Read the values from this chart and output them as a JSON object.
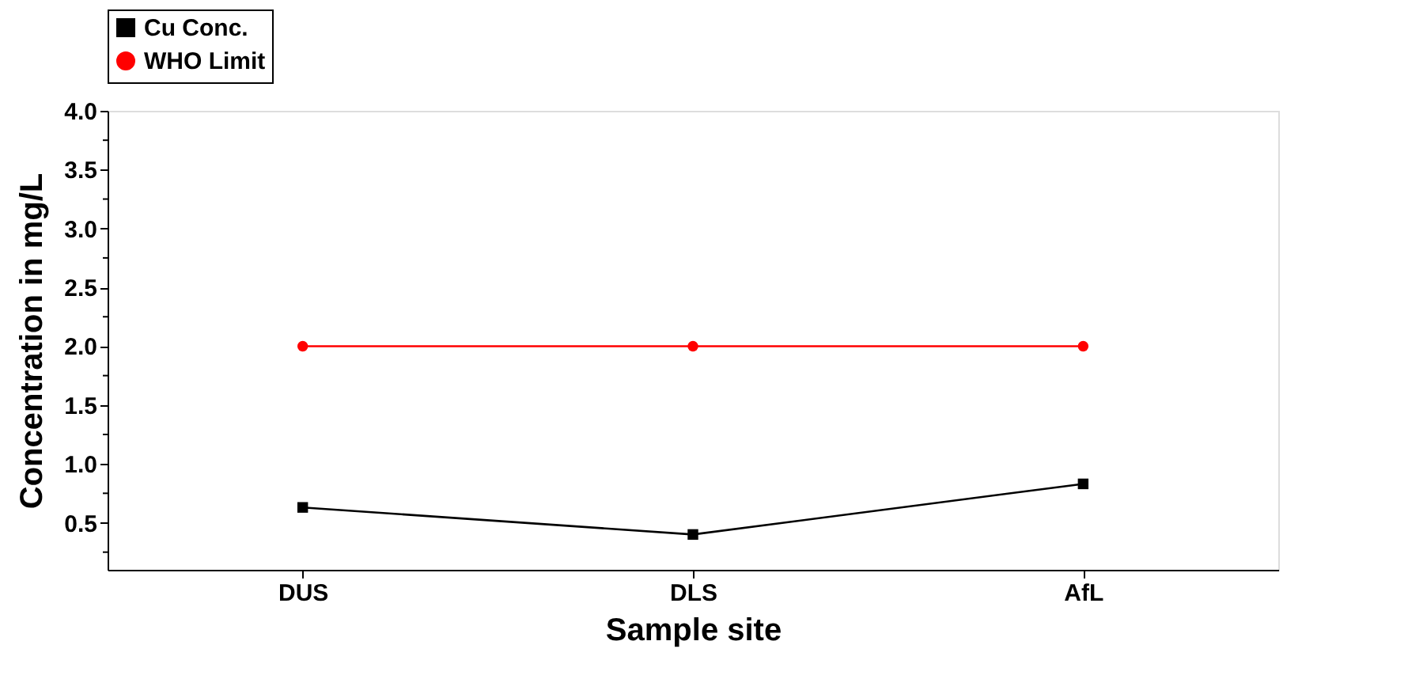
{
  "chart_data": {
    "type": "line",
    "xlabel": "Sample site",
    "ylabel": "Concentration in mg/L",
    "categories": [
      "DUS",
      "DLS",
      "AfL"
    ],
    "series": [
      {
        "name": "Cu Conc.",
        "color": "#000000",
        "values": [
          0.63,
          0.4,
          0.83
        ],
        "marker": "square"
      },
      {
        "name": "WHO Limit",
        "color": "#ff0000",
        "values": [
          2.0,
          2.0,
          2.0
        ],
        "marker": "circle"
      }
    ],
    "ylim": [
      0.1,
      4.0
    ],
    "yticks": [
      {
        "value": 0.25,
        "label": null
      },
      {
        "value": 0.5,
        "label": "0.5"
      },
      {
        "value": 0.75,
        "label": null
      },
      {
        "value": 1.0,
        "label": "1.0"
      },
      {
        "value": 1.25,
        "label": null
      },
      {
        "value": 1.5,
        "label": "1.5"
      },
      {
        "value": 1.75,
        "label": null
      },
      {
        "value": 2.0,
        "label": "2.0"
      },
      {
        "value": 2.25,
        "label": null
      },
      {
        "value": 2.5,
        "label": "2.5"
      },
      {
        "value": 2.75,
        "label": null
      },
      {
        "value": 3.0,
        "label": "3.0"
      },
      {
        "value": 3.25,
        "label": null
      },
      {
        "value": 3.5,
        "label": "3.5"
      },
      {
        "value": 3.75,
        "label": null
      },
      {
        "value": 4.0,
        "label": "4.0"
      }
    ],
    "grid": false,
    "legend": "top",
    "line_style": "solid"
  }
}
